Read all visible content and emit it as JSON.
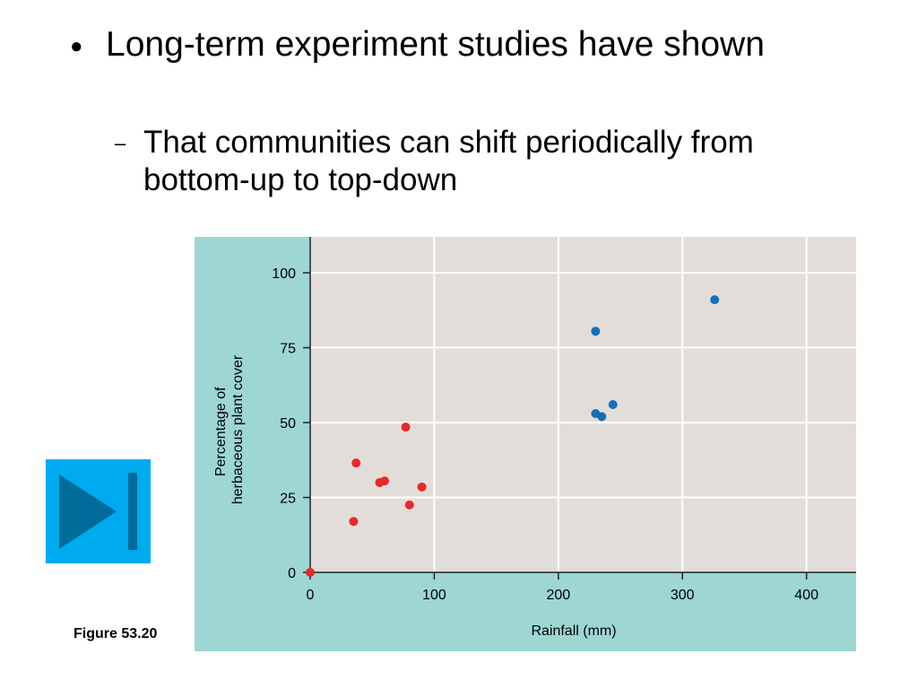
{
  "slide": {
    "bullet_text": "Long-term experiment studies have shown",
    "sub_bullet_text": "That communities can shift periodically from bottom-up to top-down",
    "bullet_glyph": "●",
    "sub_bullet_glyph": "–",
    "figure_label": "Figure 53.20",
    "play_button_icon": "skip-to-end-icon"
  },
  "colors": {
    "panel_bg": "#9dd6d3",
    "plot_bg": "#e3ddda",
    "gridline": "#ffffff",
    "axis": "#222222",
    "series_red": "#e32b2b",
    "series_blue": "#1470b8",
    "button_bg": "#00aaee",
    "button_icon": "#006c99"
  },
  "chart_data": {
    "type": "scatter",
    "title": "",
    "xlabel": "Rainfall (mm)",
    "ylabel_lines": [
      "Percentage of",
      "herbaceous plant cover"
    ],
    "xlim": [
      0,
      440
    ],
    "ylim": [
      0,
      112
    ],
    "xticks": [
      0,
      100,
      200,
      300,
      400
    ],
    "yticks": [
      0,
      25,
      50,
      75,
      100
    ],
    "grid": true,
    "series": [
      {
        "color_key": "series_red",
        "points": [
          [
            0,
            0
          ],
          [
            35,
            17
          ],
          [
            37,
            36.5
          ],
          [
            56,
            30
          ],
          [
            60,
            30.5
          ],
          [
            77,
            48.5
          ],
          [
            80,
            22.5
          ],
          [
            90,
            28.5
          ]
        ]
      },
      {
        "color_key": "series_blue",
        "points": [
          [
            230,
            80.5
          ],
          [
            230,
            53
          ],
          [
            235,
            52
          ],
          [
            244,
            56
          ],
          [
            326,
            91
          ]
        ]
      }
    ]
  }
}
